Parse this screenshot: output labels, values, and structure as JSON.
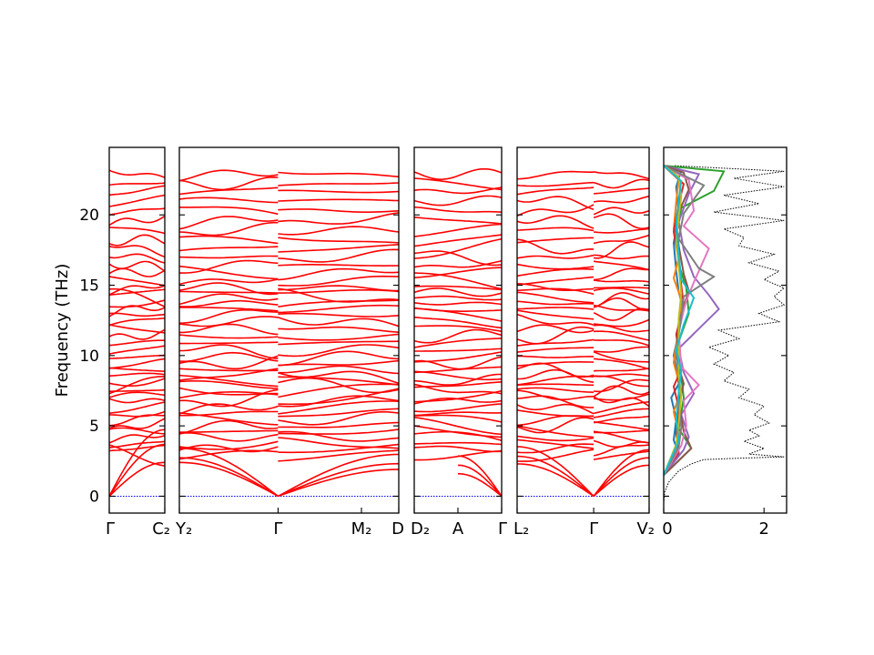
{
  "chart_data": {
    "type": "line",
    "ylabel": "Frequency (THz)",
    "ylim": [
      -1.2,
      24.8
    ],
    "yticks": [
      0,
      5,
      10,
      15,
      20
    ],
    "band_color": "#ff0000",
    "zero_line_color": "#0000ff",
    "panels": [
      {
        "id": "p1",
        "ticks": [
          {
            "at": 0,
            "label": "Γ"
          },
          {
            "at": 1,
            "label": "C₂"
          }
        ],
        "branches": [
          {
            "from": 0,
            "to": 1
          }
        ]
      },
      {
        "id": "p2",
        "ticks": [
          {
            "at": 0,
            "label": "Y₂"
          },
          {
            "at": 0.45,
            "label": "Γ"
          },
          {
            "at": 0.83,
            "label": "M₂"
          },
          {
            "at": 1,
            "label": "D"
          }
        ],
        "branches": [
          {
            "from": 0,
            "to": 0.45
          },
          {
            "from": 0.45,
            "to": 1
          }
        ]
      },
      {
        "id": "p3",
        "ticks": [
          {
            "at": 0,
            "label": "D₂"
          },
          {
            "at": 0.5,
            "label": "A"
          },
          {
            "at": 1,
            "label": "Γ"
          }
        ],
        "branches": [
          {
            "from": 0,
            "to": 1
          }
        ]
      },
      {
        "id": "p4",
        "ticks": [
          {
            "at": 0,
            "label": "L₂"
          },
          {
            "at": 0.58,
            "label": "Γ"
          },
          {
            "at": 1,
            "label": "V₂"
          }
        ],
        "branches": [
          {
            "from": 0,
            "to": 0.58
          },
          {
            "from": 0.58,
            "to": 1
          }
        ]
      }
    ],
    "acoustic": [
      {
        "panel": "p1",
        "from": 0,
        "to": 1,
        "end_values": [
          2.4,
          3.5,
          4.3
        ]
      },
      {
        "panel": "p2",
        "from": 0.45,
        "to": 0,
        "end_values": [
          2.4,
          2.6,
          3.1
        ]
      },
      {
        "panel": "p2",
        "from": 0.45,
        "to": 1,
        "end_values": [
          1.9,
          2.2,
          2.7
        ]
      },
      {
        "panel": "p3",
        "from": 1,
        "to": 0.5,
        "end_values": [
          1.6,
          2.1,
          2.6
        ]
      },
      {
        "panel": "p4",
        "from": 0.58,
        "to": 0,
        "end_values": [
          2.3,
          2.7,
          3.2
        ]
      },
      {
        "panel": "p4",
        "from": 0.58,
        "to": 1,
        "end_values": [
          2.2,
          2.6,
          3.0
        ]
      }
    ],
    "optical_levels": [
      2.9,
      3.4,
      3.7,
      4.2,
      4.6,
      5.0,
      5.5,
      5.9,
      6.3,
      6.8,
      7.1,
      7.5,
      7.9,
      8.2,
      8.6,
      9.0,
      9.4,
      9.9,
      10.4,
      10.9,
      11.4,
      11.9,
      12.4,
      12.9,
      13.3,
      13.7,
      14.1,
      14.5,
      14.8,
      15.3,
      15.9,
      16.4,
      17.0,
      17.6,
      18.2,
      18.9,
      19.6,
      20.3,
      21.0,
      21.7,
      22.2,
      22.9
    ],
    "dos": {
      "xlim": [
        0,
        2.45
      ],
      "xticks": [
        0,
        2
      ],
      "total_color": "#000000",
      "total": [
        [
          0.0,
          -0.5
        ],
        [
          0.02,
          0.3
        ],
        [
          0.1,
          1.0
        ],
        [
          0.3,
          1.8
        ],
        [
          0.55,
          2.3
        ],
        [
          0.8,
          2.6
        ],
        [
          1.5,
          2.7
        ],
        [
          2.4,
          2.8
        ],
        [
          1.7,
          3.0
        ],
        [
          2.0,
          3.4
        ],
        [
          1.6,
          3.9
        ],
        [
          1.9,
          4.3
        ],
        [
          1.7,
          4.7
        ],
        [
          2.1,
          5.2
        ],
        [
          1.8,
          5.8
        ],
        [
          2.0,
          6.4
        ],
        [
          1.5,
          7.0
        ],
        [
          1.7,
          7.6
        ],
        [
          1.2,
          8.2
        ],
        [
          1.4,
          8.8
        ],
        [
          1.0,
          9.4
        ],
        [
          1.3,
          10.0
        ],
        [
          0.9,
          10.6
        ],
        [
          1.5,
          11.2
        ],
        [
          1.1,
          11.8
        ],
        [
          2.3,
          12.4
        ],
        [
          1.9,
          13.0
        ],
        [
          2.4,
          13.6
        ],
        [
          2.2,
          14.2
        ],
        [
          2.4,
          14.8
        ],
        [
          2.0,
          15.4
        ],
        [
          2.3,
          16.0
        ],
        [
          1.7,
          16.6
        ],
        [
          2.2,
          17.2
        ],
        [
          1.5,
          17.8
        ],
        [
          1.6,
          18.4
        ],
        [
          1.2,
          19.0
        ],
        [
          2.4,
          19.6
        ],
        [
          1.0,
          20.2
        ],
        [
          1.9,
          20.8
        ],
        [
          1.2,
          21.4
        ],
        [
          2.4,
          22.0
        ],
        [
          1.4,
          22.6
        ],
        [
          2.4,
          23.1
        ],
        [
          0.2,
          23.5
        ]
      ],
      "projected": [
        {
          "color": "#1f77b4",
          "values": [
            [
              0.0,
              1.5
            ],
            [
              0.3,
              3.0
            ],
            [
              0.2,
              4.0
            ],
            [
              0.25,
              5.5
            ],
            [
              0.15,
              7.0
            ],
            [
              0.3,
              8.0
            ],
            [
              0.2,
              10.0
            ],
            [
              0.4,
              13.3
            ],
            [
              0.3,
              14.5
            ],
            [
              0.25,
              16.0
            ],
            [
              0.2,
              18.0
            ],
            [
              0.3,
              20.0
            ],
            [
              0.25,
              22.0
            ],
            [
              0.35,
              23.2
            ],
            [
              0.0,
              23.5
            ]
          ]
        },
        {
          "color": "#ff7f0e",
          "values": [
            [
              0.0,
              1.5
            ],
            [
              0.25,
              3.2
            ],
            [
              0.3,
              4.5
            ],
            [
              0.2,
              6.0
            ],
            [
              0.35,
              7.5
            ],
            [
              0.2,
              9.5
            ],
            [
              0.3,
              12.0
            ],
            [
              0.35,
              14.0
            ],
            [
              0.2,
              15.5
            ],
            [
              0.3,
              17.0
            ],
            [
              0.2,
              19.0
            ],
            [
              0.25,
              21.0
            ],
            [
              0.3,
              22.5
            ],
            [
              0.0,
              23.5
            ]
          ]
        },
        {
          "color": "#2ca02c",
          "values": [
            [
              0.0,
              1.5
            ],
            [
              0.55,
              3.4
            ],
            [
              0.3,
              4.8
            ],
            [
              0.4,
              7.0
            ],
            [
              0.35,
              8.5
            ],
            [
              0.3,
              11.0
            ],
            [
              0.5,
              13.0
            ],
            [
              0.45,
              14.8
            ],
            [
              0.3,
              16.5
            ],
            [
              0.25,
              18.5
            ],
            [
              0.35,
              20.5
            ],
            [
              1.0,
              21.7
            ],
            [
              1.2,
              23.1
            ],
            [
              0.0,
              23.5
            ]
          ]
        },
        {
          "color": "#d62728",
          "values": [
            [
              0.0,
              1.5
            ],
            [
              0.3,
              3.1
            ],
            [
              0.25,
              4.4
            ],
            [
              0.3,
              6.3
            ],
            [
              0.2,
              7.8
            ],
            [
              0.35,
              9.0
            ],
            [
              0.25,
              11.5
            ],
            [
              0.4,
              13.6
            ],
            [
              0.35,
              15.0
            ],
            [
              0.3,
              16.8
            ],
            [
              0.2,
              18.8
            ],
            [
              0.3,
              20.8
            ],
            [
              0.4,
              22.2
            ],
            [
              0.0,
              23.5
            ]
          ]
        },
        {
          "color": "#9467bd",
          "values": [
            [
              0.0,
              1.5
            ],
            [
              0.4,
              3.3
            ],
            [
              0.5,
              4.2
            ],
            [
              0.35,
              5.8
            ],
            [
              0.6,
              7.3
            ],
            [
              0.4,
              8.8
            ],
            [
              0.3,
              10.5
            ],
            [
              1.1,
              13.3
            ],
            [
              0.9,
              14.3
            ],
            [
              0.6,
              15.6
            ],
            [
              0.4,
              17.5
            ],
            [
              0.3,
              19.5
            ],
            [
              0.5,
              21.5
            ],
            [
              0.7,
              22.9
            ],
            [
              0.0,
              23.5
            ]
          ]
        },
        {
          "color": "#8c564b",
          "values": [
            [
              0.0,
              1.5
            ],
            [
              0.55,
              3.4
            ],
            [
              0.4,
              4.6
            ],
            [
              0.3,
              6.6
            ],
            [
              0.4,
              8.0
            ],
            [
              0.25,
              9.8
            ],
            [
              0.3,
              12.4
            ],
            [
              0.5,
              14.6
            ],
            [
              0.4,
              15.8
            ],
            [
              0.3,
              17.8
            ],
            [
              0.25,
              19.8
            ],
            [
              0.5,
              21.8
            ],
            [
              0.4,
              23.0
            ],
            [
              0.0,
              23.5
            ]
          ]
        },
        {
          "color": "#e377c2",
          "values": [
            [
              0.0,
              1.5
            ],
            [
              0.35,
              3.6
            ],
            [
              0.45,
              5.0
            ],
            [
              0.4,
              6.8
            ],
            [
              0.7,
              7.9
            ],
            [
              0.35,
              9.2
            ],
            [
              0.3,
              11.8
            ],
            [
              0.45,
              13.9
            ],
            [
              0.6,
              15.2
            ],
            [
              0.9,
              17.6
            ],
            [
              0.4,
              19.2
            ],
            [
              0.6,
              20.3
            ],
            [
              0.5,
              22.5
            ],
            [
              0.0,
              23.5
            ]
          ]
        },
        {
          "color": "#7f7f7f",
          "values": [
            [
              0.0,
              1.5
            ],
            [
              0.3,
              3.5
            ],
            [
              0.35,
              4.9
            ],
            [
              0.3,
              6.5
            ],
            [
              0.3,
              8.3
            ],
            [
              0.25,
              10.2
            ],
            [
              0.35,
              12.8
            ],
            [
              0.4,
              14.2
            ],
            [
              1.0,
              15.6
            ],
            [
              0.7,
              16.2
            ],
            [
              0.3,
              18.3
            ],
            [
              0.4,
              20.1
            ],
            [
              0.8,
              22.1
            ],
            [
              0.0,
              23.5
            ]
          ]
        },
        {
          "color": "#bcbd22",
          "values": [
            [
              0.0,
              1.5
            ],
            [
              0.25,
              3.7
            ],
            [
              0.3,
              5.2
            ],
            [
              0.35,
              7.2
            ],
            [
              0.3,
              8.6
            ],
            [
              0.3,
              10.8
            ],
            [
              0.3,
              12.6
            ],
            [
              0.35,
              14.4
            ],
            [
              0.3,
              16.4
            ],
            [
              0.25,
              18.1
            ],
            [
              0.3,
              19.9
            ],
            [
              0.35,
              21.3
            ],
            [
              0.3,
              22.7
            ],
            [
              0.0,
              23.5
            ]
          ]
        },
        {
          "color": "#17becf",
          "values": [
            [
              0.0,
              1.5
            ],
            [
              0.3,
              3.9
            ],
            [
              0.25,
              5.4
            ],
            [
              0.3,
              7.4
            ],
            [
              0.35,
              8.9
            ],
            [
              0.25,
              10.4
            ],
            [
              0.4,
              12.2
            ],
            [
              0.6,
              14.1
            ],
            [
              0.35,
              15.4
            ],
            [
              0.3,
              17.2
            ],
            [
              0.25,
              19.4
            ],
            [
              0.3,
              21.1
            ],
            [
              0.35,
              22.4
            ],
            [
              0.0,
              23.5
            ]
          ]
        }
      ]
    }
  }
}
